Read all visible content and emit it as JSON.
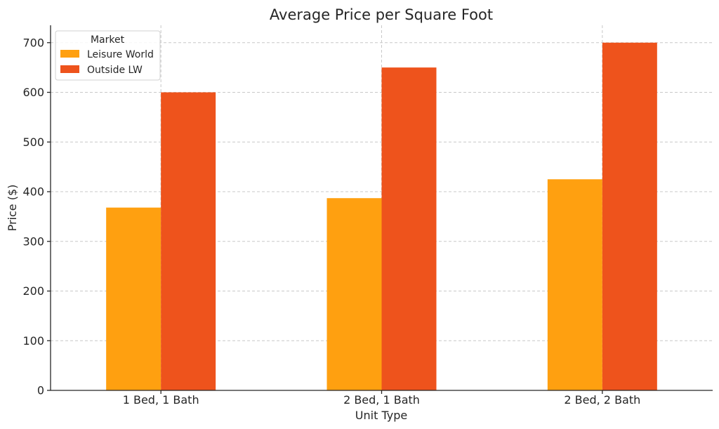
{
  "chart_data": {
    "type": "bar",
    "title": "Average Price per Square Foot",
    "xlabel": "Unit Type",
    "ylabel": "Price ($)",
    "categories": [
      "1 Bed, 1 Bath",
      "2 Bed, 1 Bath",
      "2 Bed, 2 Bath"
    ],
    "series": [
      {
        "name": "Leisure World",
        "values": [
          368,
          387,
          425
        ],
        "color": "#FFA010"
      },
      {
        "name": "Outside LW",
        "values": [
          600,
          650,
          700
        ],
        "color": "#EE531C"
      }
    ],
    "ylim": [
      0,
      735
    ],
    "yticks": [
      0,
      100,
      200,
      300,
      400,
      500,
      600,
      700
    ],
    "grid": true,
    "legend": {
      "title": "Market",
      "placement": "top-left"
    }
  }
}
